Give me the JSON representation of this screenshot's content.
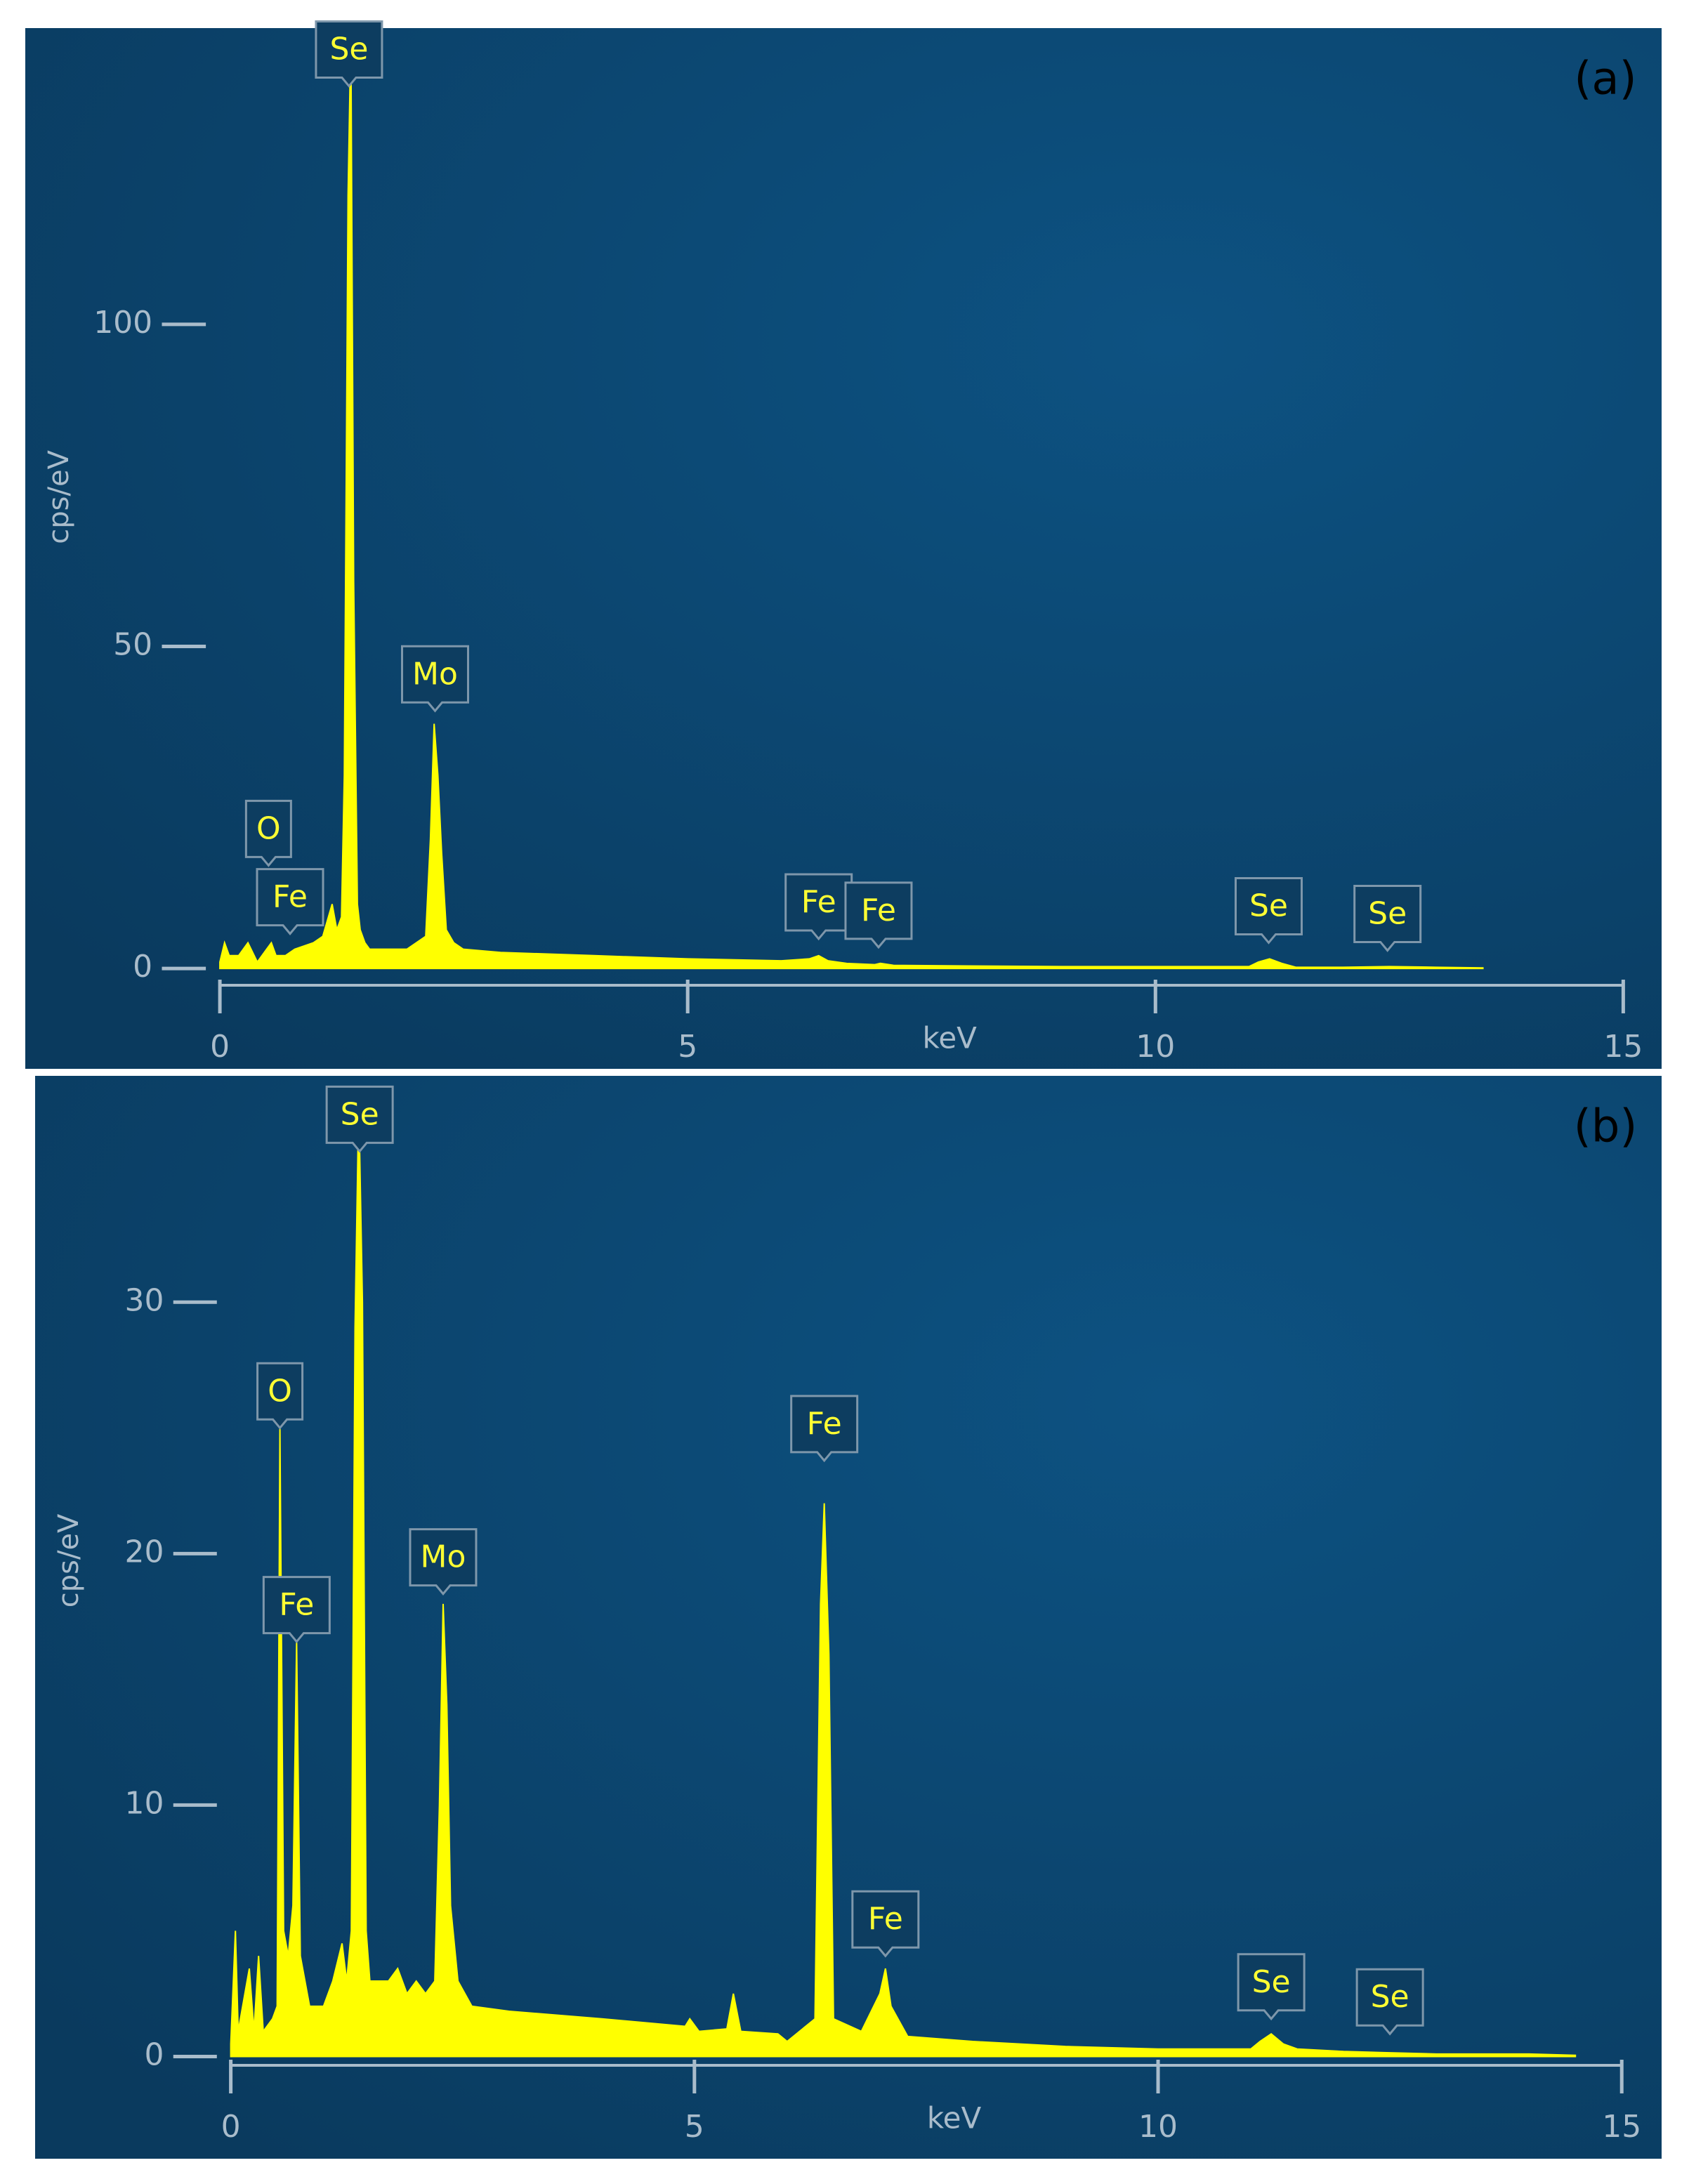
{
  "chart_data": [
    {
      "type": "area",
      "title": "(a)",
      "x_label": "keV",
      "y_label": "cps/eV",
      "xlim": [
        -2.08,
        15.41
      ],
      "xticks": [
        0,
        5,
        10,
        15
      ],
      "ylim": [
        -2.6,
        146
      ],
      "yticks": [
        0,
        50,
        100
      ],
      "grid": false,
      "x": [
        0,
        0.05,
        0.1,
        0.2,
        0.3,
        0.4,
        0.5,
        0.55,
        0.6,
        0.7,
        0.8,
        1.0,
        1.1,
        1.2,
        1.25,
        1.3,
        1.33,
        1.37,
        1.4,
        1.43,
        1.47,
        1.5,
        1.55,
        1.6,
        1.7,
        2.0,
        2.1,
        2.2,
        2.25,
        2.29,
        2.33,
        2.37,
        2.42,
        2.5,
        2.6,
        3.0,
        4,
        5,
        6,
        6.3,
        6.4,
        6.5,
        6.7,
        7.0,
        7.06,
        7.2,
        8,
        9,
        10,
        11,
        11.1,
        11.22,
        11.35,
        11.5,
        12,
        12.5,
        13,
        13.5
      ],
      "series": [
        {
          "color": "#ffff00",
          "values": [
            1,
            4,
            2,
            2,
            4,
            1,
            3,
            4,
            2,
            2,
            3,
            4,
            5,
            10,
            6,
            8,
            30,
            120,
            145,
            60,
            10,
            6,
            4,
            3,
            3,
            3,
            4,
            5,
            20,
            38,
            30,
            18,
            6,
            4,
            3,
            2.5,
            2,
            1.5,
            1.2,
            1.5,
            2,
            1.2,
            0.8,
            0.6,
            0.8,
            0.5,
            0.4,
            0.3,
            0.3,
            0.3,
            1,
            1.5,
            0.8,
            0.2,
            0.2,
            0.3,
            0.2,
            0.1
          ]
        }
      ],
      "annotations": [
        {
          "text": "Se",
          "x": 1.38,
          "y": 137
        },
        {
          "text": "Mo",
          "x": 2.3,
          "y": 40
        },
        {
          "text": "O",
          "x": 0.52,
          "y": 16
        },
        {
          "text": "Fe",
          "x": 0.75,
          "y": 5.4
        },
        {
          "text": "Fe",
          "x": 6.4,
          "y": 4.6
        },
        {
          "text": "Fe",
          "x": 7.04,
          "y": 3.3
        },
        {
          "text": "Se",
          "x": 11.21,
          "y": 4
        },
        {
          "text": "Se",
          "x": 12.48,
          "y": 2.8
        }
      ]
    },
    {
      "type": "area",
      "title": "(b)",
      "x_label": "keV",
      "y_label": "cps/eV",
      "xlim": [
        -2.11,
        15.43
      ],
      "xticks": [
        0,
        5,
        10,
        15
      ],
      "ylim": [
        -0.35,
        39
      ],
      "yticks": [
        0,
        10,
        20,
        30
      ],
      "grid": false,
      "x": [
        0,
        0.05,
        0.08,
        0.2,
        0.25,
        0.3,
        0.35,
        0.45,
        0.5,
        0.53,
        0.57,
        0.62,
        0.67,
        0.71,
        0.75,
        0.85,
        1.0,
        1.1,
        1.2,
        1.25,
        1.3,
        1.34,
        1.38,
        1.42,
        1.46,
        1.5,
        1.7,
        1.8,
        1.9,
        2.0,
        2.1,
        2.2,
        2.25,
        2.29,
        2.33,
        2.37,
        2.45,
        2.6,
        3.0,
        4,
        4.9,
        4.95,
        5.05,
        5.35,
        5.42,
        5.5,
        5.9,
        6.0,
        6.3,
        6.36,
        6.4,
        6.45,
        6.5,
        6.8,
        7.0,
        7.06,
        7.12,
        7.3,
        8,
        9,
        10,
        11,
        11.1,
        11.22,
        11.35,
        11.5,
        12,
        12.5,
        13,
        14,
        14.5
      ],
      "series": [
        {
          "color": "#ffff00",
          "values": [
            0.5,
            5,
            1,
            3.5,
            1,
            4,
            1,
            1.5,
            2,
            25,
            5,
            4,
            6,
            16.5,
            4,
            2,
            2,
            3,
            4.5,
            3,
            5,
            29,
            38,
            30,
            5,
            3,
            3,
            3.5,
            2.5,
            3,
            2.5,
            3,
            10,
            18,
            14,
            6,
            3,
            2,
            1.8,
            1.5,
            1.2,
            1.5,
            1,
            1.1,
            2.5,
            1,
            0.9,
            0.6,
            1.5,
            18,
            22,
            16,
            1.5,
            1,
            2.5,
            3.5,
            2,
            0.8,
            0.6,
            0.4,
            0.3,
            0.3,
            0.6,
            0.9,
            0.5,
            0.3,
            0.2,
            0.15,
            0.1,
            0.1,
            0.05
          ]
        }
      ],
      "annotations": [
        {
          "text": "Se",
          "x": 1.39,
          "y": 36
        },
        {
          "text": "O",
          "x": 0.53,
          "y": 25
        },
        {
          "text": "Fe",
          "x": 0.71,
          "y": 16.5
        },
        {
          "text": "Mo",
          "x": 2.29,
          "y": 18.4
        },
        {
          "text": "Fe",
          "x": 6.4,
          "y": 23.7
        },
        {
          "text": "Fe",
          "x": 7.06,
          "y": 4
        },
        {
          "text": "Se",
          "x": 11.22,
          "y": 1.5
        },
        {
          "text": "Se",
          "x": 12.5,
          "y": 0.9
        }
      ]
    }
  ]
}
